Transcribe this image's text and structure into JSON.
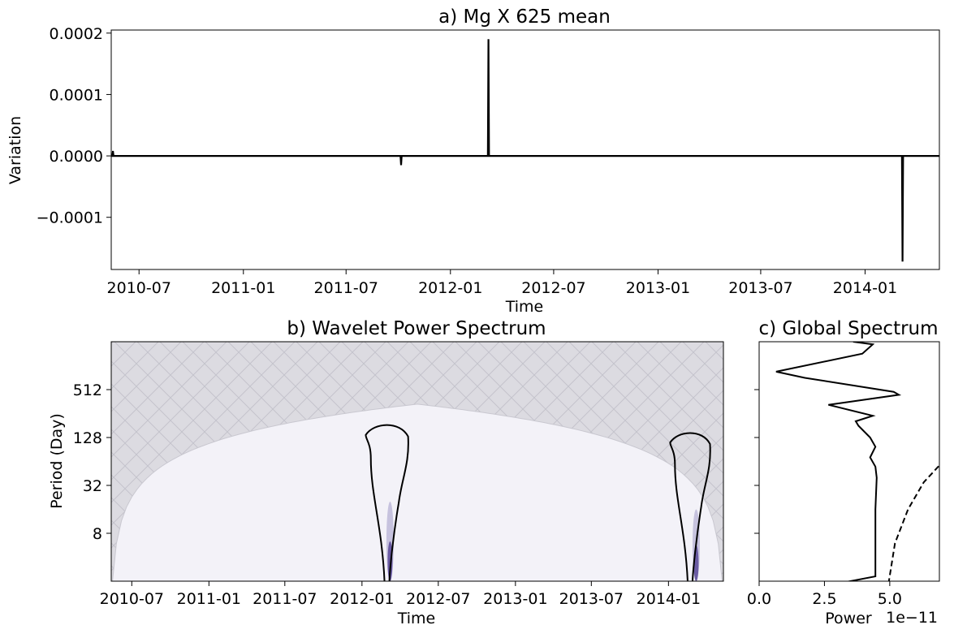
{
  "chart_data": [
    {
      "type": "line",
      "title": "a) Mg X 625 mean",
      "xlabel": "Time",
      "ylabel": "Variation",
      "xlim": [
        "2010-05-13",
        "2014-05-12"
      ],
      "ylim": [
        -0.000185,
        0.000205
      ],
      "x_tick_labels": [
        "2010-07",
        "2011-01",
        "2011-07",
        "2012-01",
        "2012-07",
        "2013-01",
        "2013-07",
        "2014-01"
      ],
      "x_ticks": [
        "2010-07-01",
        "2011-01-01",
        "2011-07-01",
        "2012-01-01",
        "2012-07-01",
        "2013-01-01",
        "2013-07-01",
        "2014-01-01"
      ],
      "y_tick_labels": [
        "0.0002",
        "0.0001",
        "0.0000",
        "−0.0001"
      ],
      "y_ticks": [
        0.0002,
        0.0001,
        0.0,
        -0.0001
      ],
      "grid": false,
      "series": [
        {
          "x": [
            "2010-05-13",
            "2010-05-15",
            "2010-05-16",
            "2010-05-17",
            "2010-05-18",
            "2011-10-05",
            "2011-10-06",
            "2011-10-07",
            "2011-10-08",
            "2012-03-07",
            "2012-03-08",
            "2012-03-09",
            "2012-03-10",
            "2014-03-07",
            "2014-03-08",
            "2014-03-09",
            "2014-03-10",
            "2014-05-12"
          ],
          "y": [
            0.0,
            0.0,
            8e-06,
            0.0,
            0.0,
            0.0,
            -1.5e-05,
            0.0,
            0.0,
            0.0,
            0.00019,
            0.0,
            0.0,
            0.0,
            -0.000172,
            0.0,
            0.0,
            0.0
          ]
        }
      ]
    },
    {
      "type": "heatmap",
      "title": "b) Wavelet Power Spectrum",
      "xlabel": "Time",
      "ylabel": "Period (Day)",
      "xlim": [
        "2010-05-13",
        "2014-05-12"
      ],
      "y_scale": "log2",
      "ylim": [
        2,
        2048
      ],
      "x_tick_labels": [
        "2010-07",
        "2011-01",
        "2011-07",
        "2012-01",
        "2012-07",
        "2013-01",
        "2013-07",
        "2014-01"
      ],
      "x_ticks": [
        "2010-07-01",
        "2011-01-01",
        "2011-07-01",
        "2012-01-01",
        "2012-07-01",
        "2013-01-01",
        "2013-07-01",
        "2014-01-01"
      ],
      "y_tick_labels": [
        "512",
        "128",
        "32",
        "8"
      ],
      "y_ticks": [
        512,
        128,
        32,
        8
      ],
      "cone_of_influence_hatched": true,
      "significance_contours": [
        {
          "time_range": [
            "2012-01-10",
            "2012-04-20"
          ],
          "max_period": 190
        },
        {
          "time_range": [
            "2014-01-05",
            "2014-04-10"
          ],
          "max_period": 150
        }
      ],
      "power_peaks": [
        {
          "time": "2012-03-08",
          "max_period": 20
        },
        {
          "time": "2014-03-08",
          "max_period": 16
        }
      ]
    },
    {
      "type": "line",
      "title": "c) Global Spectrum",
      "xlabel": "Power",
      "x_offset_text": "1e−11",
      "xlim": [
        0.0,
        6.9
      ],
      "x_tick_labels": [
        "0.0",
        "2.5",
        "5.0"
      ],
      "x_ticks": [
        0.0,
        2.5,
        5.0
      ],
      "y_scale": "log2",
      "ylim": [
        2,
        2048
      ],
      "series": [
        {
          "style": "solid",
          "x": [
            2.95,
            4.45,
            4.45,
            4.45,
            4.5,
            4.45,
            4.25,
            4.45,
            4.25,
            3.8,
            3.7,
            4.35,
            2.65,
            5.35,
            5.15,
            1.75,
            0.65,
            3.95,
            4.35,
            3.6
          ],
          "y": [
            1.85,
            2.3,
            4,
            16,
            40,
            55,
            72,
            98,
            128,
            180,
            205,
            240,
            330,
            440,
            480,
            720,
            860,
            1450,
            1900,
            2048
          ]
        },
        {
          "style": "dashed",
          "x": [
            4.95,
            5.2,
            5.7,
            6.3,
            6.9
          ],
          "y": [
            1.85,
            6,
            16,
            35,
            57
          ]
        }
      ]
    }
  ]
}
